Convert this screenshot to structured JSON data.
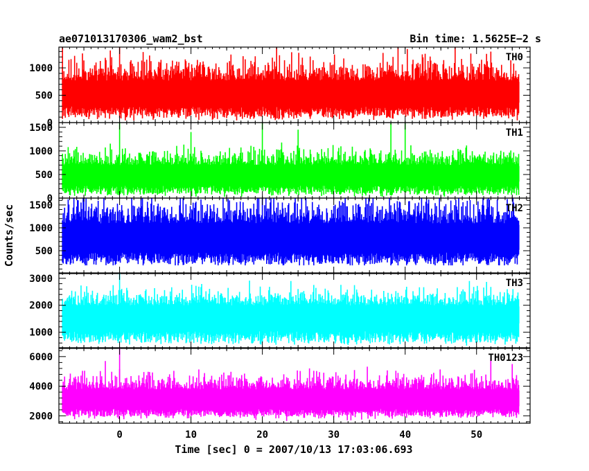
{
  "header": {
    "title": "ae071013170306_wam2_bst",
    "bin_time": "Bin time: 1.5625E−2 s"
  },
  "ylabel": "Counts/sec",
  "xlabel": "Time [sec] 0 = 2007/10/13 17:03:06.693",
  "chart_data": {
    "type": "line",
    "title": "ae071013170306_wam2_bst",
    "subtitle": "Bin time: 1.5625E−2 s",
    "xlabel": "Time [sec] 0 = 2007/10/13 17:03:06.693",
    "ylabel": "Counts/sec",
    "xlim": [
      -8.5,
      57.5
    ],
    "x_range_data": [
      -8,
      56
    ],
    "x_ticks": [
      0,
      10,
      20,
      30,
      40,
      50
    ],
    "x_tick_labels": [
      "0",
      "10",
      "20",
      "30",
      "40",
      "50"
    ],
    "grid": false,
    "panels": [
      {
        "name": "TH0",
        "color": "#ff0000",
        "ylim": [
          0,
          1380
        ],
        "ticks": [
          0,
          500,
          1000
        ],
        "tick_labels": [
          "0",
          "500",
          "1000"
        ],
        "baseline": 40,
        "low": 120,
        "mean": 560,
        "spread": 230,
        "high": 1380,
        "spikes": [
          {
            "x": -8,
            "y": 1380
          },
          {
            "x": 0,
            "y": 1380
          },
          {
            "x": 22,
            "y": 1380
          },
          {
            "x": 39,
            "y": 1380
          },
          {
            "x": 47,
            "y": 1380
          }
        ]
      },
      {
        "name": "TH1",
        "color": "#00ff00",
        "ylim": [
          0,
          1600
        ],
        "ticks": [
          0,
          500,
          1000,
          1500
        ],
        "tick_labels": [
          "0",
          "500",
          "1000",
          "1500"
        ],
        "baseline": 30,
        "low": 100,
        "mean": 520,
        "spread": 200,
        "high": 1600,
        "spikes": [
          {
            "x": 0,
            "y": 1600
          },
          {
            "x": 10,
            "y": 1400
          },
          {
            "x": 20,
            "y": 1600
          },
          {
            "x": 25,
            "y": 1450
          },
          {
            "x": 38,
            "y": 1600
          },
          {
            "x": 40,
            "y": 1600
          }
        ]
      },
      {
        "name": "TH2",
        "color": "#0000ff",
        "ylim": [
          0,
          1650
        ],
        "ticks": [
          500,
          1000,
          1500
        ],
        "tick_labels": [
          "500",
          "1000",
          "1500"
        ],
        "baseline": 180,
        "low": 250,
        "mean": 800,
        "spread": 330,
        "high": 1650,
        "spikes": [
          {
            "x": 3,
            "y": 1650
          },
          {
            "x": 20,
            "y": 1650
          },
          {
            "x": 43,
            "y": 1650
          }
        ]
      },
      {
        "name": "TH3",
        "color": "#00ffff",
        "ylim": [
          400,
          3200
        ],
        "ticks": [
          1000,
          2000,
          3000
        ],
        "tick_labels": [
          "1000",
          "2000",
          "3000"
        ],
        "baseline": 450,
        "low": 650,
        "mean": 1650,
        "spread": 380,
        "high": 3200,
        "spikes": [
          {
            "x": 0,
            "y": 3200
          },
          {
            "x": 24,
            "y": 2900
          },
          {
            "x": 49,
            "y": 2900
          }
        ]
      },
      {
        "name": "TH0123",
        "color": "#ff00ff",
        "ylim": [
          1500,
          6600
        ],
        "ticks": [
          2000,
          4000,
          6000
        ],
        "tick_labels": [
          "2000",
          "4000",
          "6000"
        ],
        "baseline": 1650,
        "low": 2000,
        "mean": 3200,
        "spread": 650,
        "high": 6600,
        "spikes": [
          {
            "x": 0,
            "y": 6600
          },
          {
            "x": -2,
            "y": 5700
          },
          {
            "x": 52,
            "y": 5900
          },
          {
            "x": 55,
            "y": 5500
          }
        ]
      }
    ]
  }
}
